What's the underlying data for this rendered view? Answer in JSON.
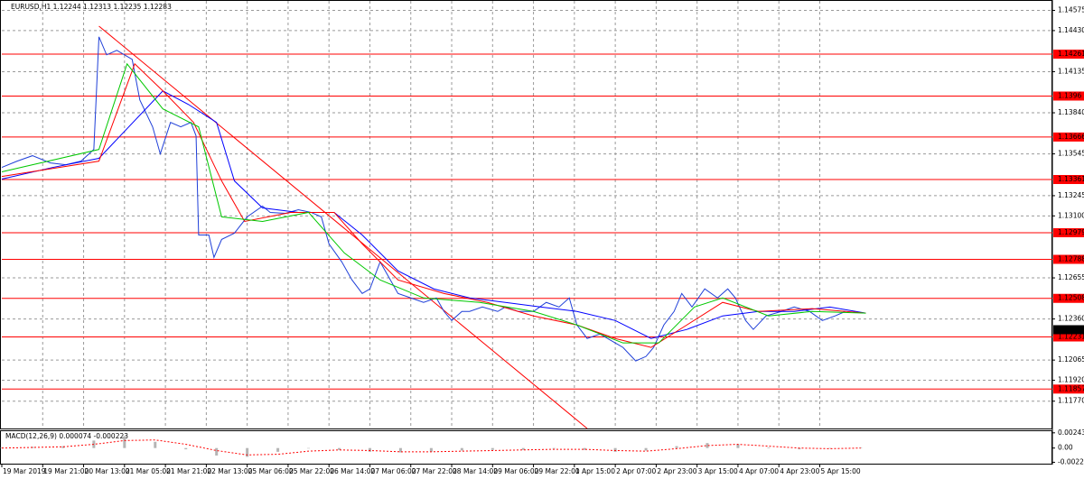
{
  "chart_data": [
    {
      "type": "line",
      "title": "EURUSD,H1  1.12244 1.12313 1.12235 1.12283",
      "xlim": [
        0,
        411
      ],
      "xticks": [
        {
          "value": 0,
          "label": "19 Mar 2019"
        },
        {
          "value": 16,
          "label": "19 Mar 21:00"
        },
        {
          "value": 32,
          "label": "20 Mar 13:00"
        },
        {
          "value": 48,
          "label": "21 Mar 05:00"
        },
        {
          "value": 64,
          "label": "21 Mar 21:00"
        },
        {
          "value": 80,
          "label": "22 Mar 13:00"
        },
        {
          "value": 96,
          "label": "25 Mar 06:00"
        },
        {
          "value": 112,
          "label": "25 Mar 22:00"
        },
        {
          "value": 128,
          "label": "26 Mar 14:00"
        },
        {
          "value": 144,
          "label": "27 Mar 06:00"
        },
        {
          "value": 160,
          "label": "27 Mar 22:00"
        },
        {
          "value": 176,
          "label": "28 Mar 14:00"
        },
        {
          "value": 192,
          "label": "29 Mar 06:00"
        },
        {
          "value": 208,
          "label": "29 Mar 22:00"
        },
        {
          "value": 224,
          "label": "1 Apr 15:00"
        },
        {
          "value": 240,
          "label": "2 Apr 07:00"
        },
        {
          "value": 256,
          "label": "2 Apr 23:00"
        },
        {
          "value": 272,
          "label": "3 Apr 15:00"
        },
        {
          "value": 288,
          "label": "4 Apr 07:00"
        },
        {
          "value": 304,
          "label": "4 Apr 23:00"
        },
        {
          "value": 320,
          "label": "5 Apr 15:00"
        }
      ],
      "ylim": [
        1.11574,
        1.14643
      ],
      "yticks": [
        1.14575,
        {
          "value": 1.1443,
          "label": "1.14430"
        },
        1.14135,
        {
          "value": 1.1384,
          "label": "1.13840"
        },
        1.13545,
        1.13245,
        {
          "value": 1.131,
          "label": "1.13100"
        },
        1.12655,
        {
          "value": 1.1236,
          "label": "1.12360"
        },
        1.12065,
        {
          "value": 1.1192,
          "label": "1.11920"
        },
        {
          "value": 1.1177,
          "label": "1.11770"
        }
      ],
      "grid": true,
      "series": [
        {
          "color": "#1f3fd8",
          "x": [
            0,
            6,
            12,
            19,
            25,
            31,
            36,
            38,
            41,
            45,
            51,
            54,
            59,
            62,
            66,
            70,
            74,
            76,
            77,
            81,
            83,
            86,
            91,
            96,
            102,
            105,
            111,
            116,
            121,
            125,
            128,
            133,
            137,
            141,
            144,
            148,
            151,
            155,
            160,
            165,
            170,
            173,
            176,
            180,
            183,
            188,
            194,
            197,
            202,
            208,
            213,
            218,
            222,
            225,
            229,
            234,
            240,
            243,
            248,
            252,
            255,
            259,
            263,
            266,
            270,
            275,
            280,
            284,
            287,
            291,
            294,
            299,
            305,
            310,
            316,
            321,
            326,
            330
          ],
          "values": [
            1.13448,
            1.13493,
            1.13532,
            1.1348,
            1.13467,
            1.13493,
            1.13577,
            1.14385,
            1.14256,
            1.14288,
            1.14223,
            1.13932,
            1.13739,
            1.13545,
            1.13771,
            1.13739,
            1.13771,
            1.13674,
            1.12963,
            1.12963,
            1.12802,
            1.12931,
            1.12976,
            1.13093,
            1.1317,
            1.13125,
            1.13118,
            1.13144,
            1.13125,
            1.13093,
            1.12899,
            1.1277,
            1.1264,
            1.12543,
            1.12576,
            1.1277,
            1.12673,
            1.12543,
            1.12511,
            1.12479,
            1.12511,
            1.12414,
            1.12349,
            1.12414,
            1.12414,
            1.12446,
            1.12414,
            1.12446,
            1.12414,
            1.12414,
            1.12479,
            1.12446,
            1.12511,
            1.12317,
            1.1222,
            1.12252,
            1.12188,
            1.12156,
            1.12059,
            1.12091,
            1.12156,
            1.12317,
            1.12414,
            1.12543,
            1.12446,
            1.12576,
            1.12511,
            1.12576,
            1.12511,
            1.12349,
            1.12285,
            1.12382,
            1.12414,
            1.12446,
            1.12414,
            1.12349,
            1.12382,
            1.12414
          ]
        },
        {
          "color": "#0000ff",
          "x": [
            0,
            20,
            38,
            63,
            73,
            84,
            91,
            102,
            116,
            130,
            141,
            155,
            169,
            183,
            197,
            211,
            225,
            240,
            254,
            268,
            282,
            296,
            310,
            324,
            338
          ],
          "values": [
            1.13364,
            1.13448,
            1.13513,
            1.13997,
            1.139,
            1.13771,
            1.13351,
            1.13157,
            1.13125,
            1.13125,
            1.12963,
            1.12705,
            1.12576,
            1.12511,
            1.12479,
            1.12446,
            1.12414,
            1.12349,
            1.1222,
            1.12285,
            1.12382,
            1.12414,
            1.12414,
            1.12446,
            1.12402
          ]
        },
        {
          "color": "#ff0000",
          "x": [
            0,
            38,
            52,
            63,
            75,
            86,
            95,
            113,
            130,
            141,
            155,
            173,
            190,
            208,
            225,
            240,
            254,
            268,
            282,
            296,
            317,
            338
          ],
          "values": [
            1.13383,
            1.13493,
            1.14191,
            1.13997,
            1.13771,
            1.13351,
            1.1306,
            1.13125,
            1.13125,
            1.12899,
            1.1264,
            1.12543,
            1.12479,
            1.12382,
            1.12317,
            1.1222,
            1.12156,
            1.12317,
            1.12479,
            1.12414,
            1.12434,
            1.12402
          ]
        },
        {
          "color": "#00c800",
          "x": [
            0,
            38,
            49,
            63,
            77,
            86,
            102,
            120,
            134,
            148,
            165,
            187,
            208,
            225,
            243,
            257,
            271,
            282,
            300,
            317,
            338
          ],
          "values": [
            1.13416,
            1.13577,
            1.14191,
            1.13868,
            1.13739,
            1.13093,
            1.1306,
            1.13125,
            1.12834,
            1.1264,
            1.12511,
            1.12479,
            1.12414,
            1.12317,
            1.12188,
            1.12188,
            1.12446,
            1.12511,
            1.12382,
            1.12414,
            1.12402
          ]
        }
      ],
      "trendline": {
        "color": "#ff0000",
        "x": [
          38,
          229
        ],
        "values": [
          1.14462,
          1.11574
        ]
      },
      "levels": {
        "color": "#ff0000",
        "values": [
          1.14261,
          1.1396,
          1.13666,
          1.13361,
          1.12979,
          1.12788,
          1.12508,
          1.12231,
          1.11857
        ]
      },
      "current_price": 1.12283
    },
    {
      "type": "bar",
      "title": "MACD(12,26,9) 0.000074 -0.000223",
      "xlim": [
        0,
        411
      ],
      "ylim": [
        -0.0025,
        0.0027
      ],
      "yticks": [
        0.002438,
        {
          "value": 0,
          "label": "0.00"
        },
        -0.002277
      ],
      "x": [
        0,
        12,
        24,
        36,
        48,
        60,
        72,
        84,
        96,
        108,
        120,
        132,
        144,
        156,
        168,
        180,
        192,
        204,
        216,
        228,
        240,
        252,
        264,
        276,
        288,
        300,
        312,
        324,
        336
      ],
      "series": [
        {
          "kind": "bar",
          "color": "#b4b4b4",
          "values": [
            0.0001,
            0.0002,
            0.0003,
            0.0012,
            0.0019,
            0.001,
            -0.0002,
            -0.0012,
            -0.0014,
            -0.0006,
            0,
            -0.0003,
            -0.0006,
            -0.0007,
            -0.0006,
            -0.0004,
            -0.0003,
            -0.0003,
            -0.0001,
            -0.0003,
            -0.0006,
            -0.0004,
            0.0003,
            0.0008,
            0.0006,
            0.0001,
            -0.0002,
            0,
            0.0001
          ]
        },
        {
          "kind": "line",
          "color": "#ff0000",
          "values": [
            0,
            0.0001,
            0.0002,
            0.0006,
            0.0012,
            0.0013,
            0.0006,
            -0.0004,
            -0.0011,
            -0.001,
            -0.0005,
            -0.0003,
            -0.0004,
            -0.0006,
            -0.0006,
            -0.0005,
            -0.0004,
            -0.0003,
            -0.0002,
            -0.0002,
            -0.0004,
            -0.0005,
            -0.0001,
            0.0004,
            0.0006,
            0.0003,
            0,
            -0.0001,
            0
          ]
        }
      ]
    }
  ]
}
